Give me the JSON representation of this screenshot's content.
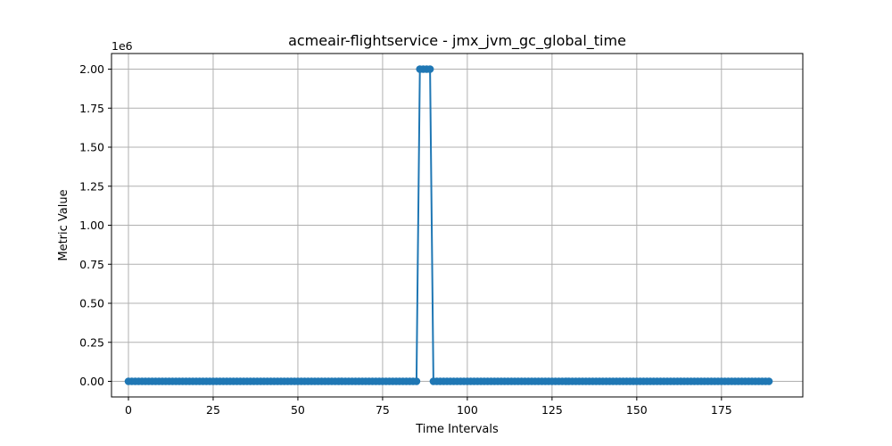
{
  "chart_data": {
    "type": "line",
    "title": "acmeair-flightservice - jmx_jvm_gc_global_time",
    "xlabel": "Time Intervals",
    "ylabel": "Metric Value",
    "y_offset_label": "1e6",
    "xlim": [
      -5,
      199
    ],
    "ylim": [
      -0.1,
      2.1
    ],
    "x_ticks": [
      0,
      25,
      50,
      75,
      100,
      125,
      150,
      175
    ],
    "x_tick_labels": [
      "0",
      "25",
      "50",
      "75",
      "100",
      "125",
      "150",
      "175"
    ],
    "y_ticks": [
      0.0,
      0.25,
      0.5,
      0.75,
      1.0,
      1.25,
      1.5,
      1.75,
      2.0
    ],
    "y_tick_labels": [
      "0.00",
      "0.25",
      "0.50",
      "0.75",
      "1.00",
      "1.25",
      "1.50",
      "1.75",
      "2.00"
    ],
    "grid": true,
    "legend": "none",
    "series": [
      {
        "color": "#1f77b4",
        "marker": "circle",
        "x": [
          0,
          1,
          2,
          3,
          4,
          5,
          6,
          7,
          8,
          9,
          10,
          11,
          12,
          13,
          14,
          15,
          16,
          17,
          18,
          19,
          20,
          21,
          22,
          23,
          24,
          25,
          26,
          27,
          28,
          29,
          30,
          31,
          32,
          33,
          34,
          35,
          36,
          37,
          38,
          39,
          40,
          41,
          42,
          43,
          44,
          45,
          46,
          47,
          48,
          49,
          50,
          51,
          52,
          53,
          54,
          55,
          56,
          57,
          58,
          59,
          60,
          61,
          62,
          63,
          64,
          65,
          66,
          67,
          68,
          69,
          70,
          71,
          72,
          73,
          74,
          75,
          76,
          77,
          78,
          79,
          80,
          81,
          82,
          83,
          84,
          85,
          86,
          87,
          88,
          89,
          90,
          91,
          92,
          93,
          94,
          95,
          96,
          97,
          98,
          99,
          100,
          101,
          102,
          103,
          104,
          105,
          106,
          107,
          108,
          109,
          110,
          111,
          112,
          113,
          114,
          115,
          116,
          117,
          118,
          119,
          120,
          121,
          122,
          123,
          124,
          125,
          126,
          127,
          128,
          129,
          130,
          131,
          132,
          133,
          134,
          135,
          136,
          137,
          138,
          139,
          140,
          141,
          142,
          143,
          144,
          145,
          146,
          147,
          148,
          149,
          150,
          151,
          152,
          153,
          154,
          155,
          156,
          157,
          158,
          159,
          160,
          161,
          162,
          163,
          164,
          165,
          166,
          167,
          168,
          169,
          170,
          171,
          172,
          173,
          174,
          175,
          176,
          177,
          178,
          179,
          180,
          181,
          182,
          183,
          184,
          185,
          186,
          187,
          188,
          189
        ],
        "y": [
          0,
          0,
          0,
          0,
          0,
          0,
          0,
          0,
          0,
          0,
          0,
          0,
          0,
          0,
          0,
          0,
          0,
          0,
          0,
          0,
          0,
          0,
          0,
          0,
          0,
          0,
          0,
          0,
          0,
          0,
          0,
          0,
          0,
          0,
          0,
          0,
          0,
          0,
          0,
          0,
          0,
          0,
          0,
          0,
          0,
          0,
          0,
          0,
          0,
          0,
          0,
          0,
          0,
          0,
          0,
          0,
          0,
          0,
          0,
          0,
          0,
          0,
          0,
          0,
          0,
          0,
          0,
          0,
          0,
          0,
          0,
          0,
          0,
          0,
          0,
          0,
          0,
          0,
          0,
          0,
          0,
          0,
          0,
          0,
          0,
          0,
          2,
          2,
          2,
          2,
          0,
          0,
          0,
          0,
          0,
          0,
          0,
          0,
          0,
          0,
          0,
          0,
          0,
          0,
          0,
          0,
          0,
          0,
          0,
          0,
          0,
          0,
          0,
          0,
          0,
          0,
          0,
          0,
          0,
          0,
          0,
          0,
          0,
          0,
          0,
          0,
          0,
          0,
          0,
          0,
          0,
          0,
          0,
          0,
          0,
          0,
          0,
          0,
          0,
          0,
          0,
          0,
          0,
          0,
          0,
          0,
          0,
          0,
          0,
          0,
          0,
          0,
          0,
          0,
          0,
          0,
          0,
          0,
          0,
          0,
          0,
          0,
          0,
          0,
          0,
          0,
          0,
          0,
          0,
          0,
          0,
          0,
          0,
          0,
          0,
          0,
          0,
          0,
          0,
          0,
          0,
          0,
          0,
          0,
          0,
          0,
          0,
          0,
          0,
          0
        ]
      }
    ]
  }
}
